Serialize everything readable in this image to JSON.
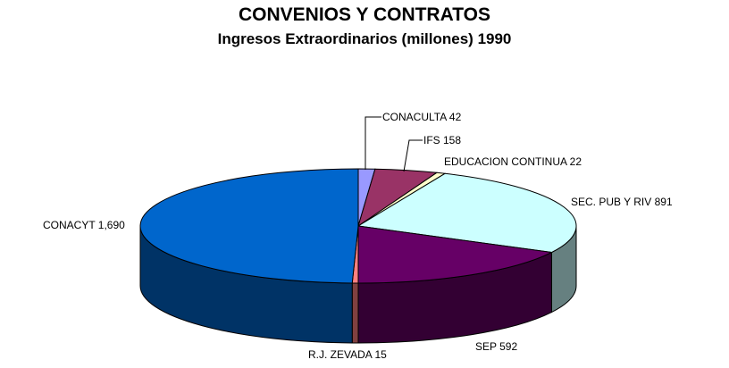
{
  "chart_data": {
    "type": "pie",
    "title": "CONVENIOS Y CONTRATOS",
    "subtitle": "Ingresos Extraordinarios (millones) 1990",
    "slices": [
      {
        "name": "CONACULTA",
        "value": 42,
        "label_value": "42",
        "color": "#9999ff"
      },
      {
        "name": "IFS",
        "value": 158,
        "label_value": "158",
        "color": "#993366"
      },
      {
        "name": "EDUCACION CONTINUA",
        "value": 22,
        "label_value": "22",
        "color": "#ffffcc"
      },
      {
        "name": "SEC. PUB Y RIV",
        "value": 891,
        "label_value": "891",
        "color": "#ccffff"
      },
      {
        "name": "SEP",
        "value": 592,
        "label_value": "592",
        "color": "#660066"
      },
      {
        "name": "R.J. ZEVADA",
        "value": 15,
        "label_value": "15",
        "color": "#ff8080"
      },
      {
        "name": "CONACYT",
        "value": 1690,
        "label_value": "1,690",
        "color": "#0066cc"
      }
    ]
  }
}
